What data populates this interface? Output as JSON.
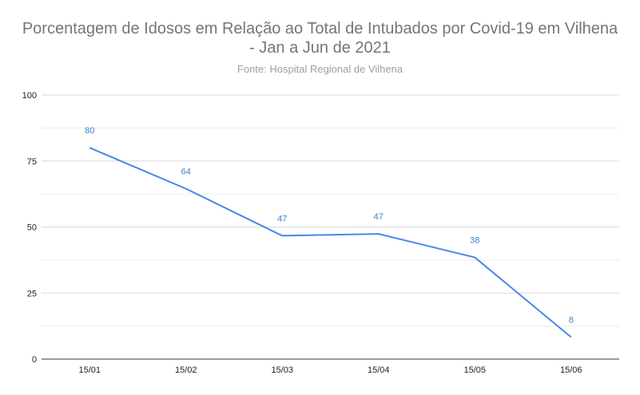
{
  "chart_data": {
    "type": "line",
    "title_line1": "Porcentagem de Idosos em Relação ao Total de Intubados por Covid-19 em Vilhena",
    "title_line2": "- Jan a Jun de 2021",
    "subtitle": "Fonte: Hospital Regional de Vilhena",
    "categories": [
      "15/01",
      "15/02",
      "15/03",
      "15/04",
      "15/05",
      "15/06"
    ],
    "series": [
      {
        "values": [
          80,
          64.5,
          46.7,
          47.4,
          38.5,
          8.3
        ],
        "data_labels": [
          "80",
          "64",
          "47",
          "47",
          "38",
          "8"
        ]
      }
    ],
    "ylim": [
      0,
      100
    ],
    "yticks": [
      0,
      25,
      50,
      75,
      100
    ],
    "grid": true,
    "colors": {
      "line": "#4a86e8",
      "label": "#3d85c6",
      "major_grid": "#d9d9d9",
      "minor_grid": "#ededed",
      "axis": "#333333"
    }
  }
}
